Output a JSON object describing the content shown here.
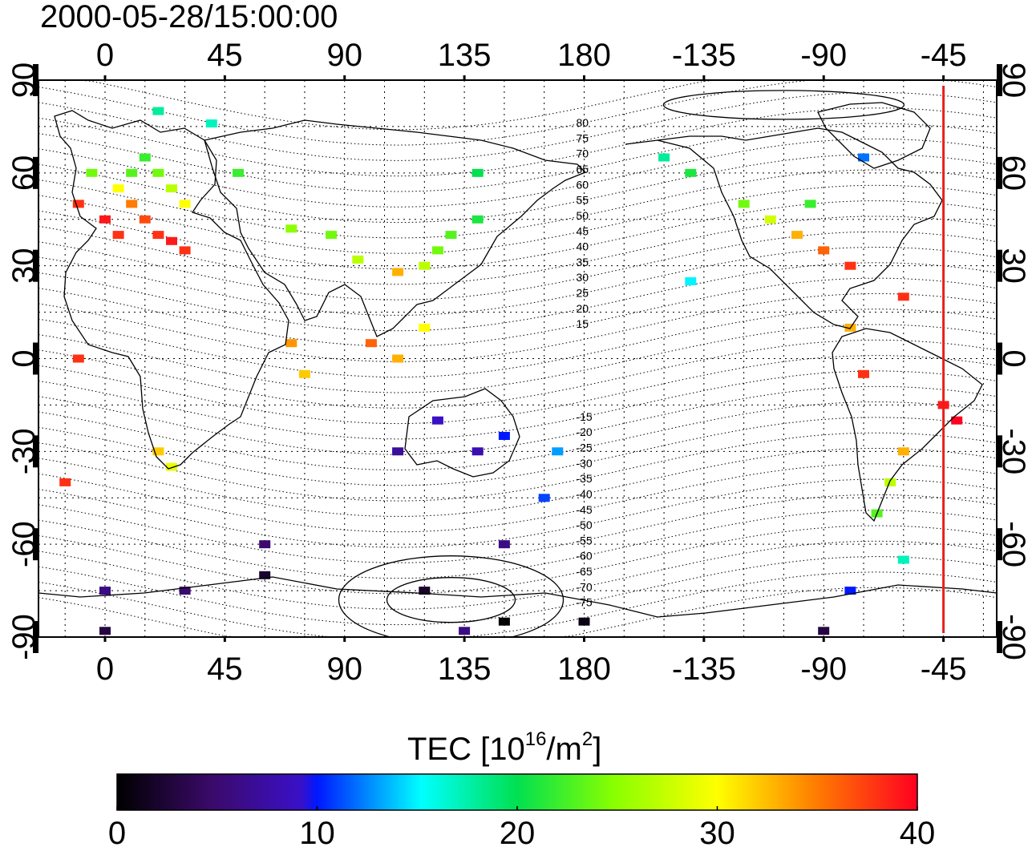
{
  "title": "2000-05-28/15:00:00",
  "lon_ticks": [
    "0",
    "45",
    "90",
    "135",
    "180",
    "-135",
    "-90",
    "-45"
  ],
  "lat_ticks": [
    "90",
    "60",
    "30",
    "0",
    "-30",
    "-60",
    "-90"
  ],
  "mag_lat_labels": [
    "80",
    "75",
    "70",
    "65",
    "60",
    "55",
    "50",
    "45",
    "40",
    "35",
    "30",
    "25",
    "20",
    "15",
    "-15",
    "-20",
    "-25",
    "-30",
    "-35",
    "-40",
    "-45",
    "-50",
    "-55",
    "-60",
    "-65",
    "-70",
    "-75"
  ],
  "colorbar": {
    "label_main": "TEC  [10",
    "label_exp1": "16",
    "label_mid": "/m",
    "label_exp2": "2",
    "label_end": "]",
    "ticks": [
      "0",
      "10",
      "20",
      "30",
      "40"
    ],
    "min": 0,
    "max": 40
  },
  "terminator_longitude": -45,
  "colors": {
    "terminator": "#e8201a",
    "frame": "#000000",
    "grid": "#000000"
  },
  "chart_data": {
    "type": "heatmap",
    "title": "2000-05-28/15:00:00",
    "x_range": [
      -25,
      335
    ],
    "y_range": [
      -90,
      90
    ],
    "value_range": [
      0,
      40
    ],
    "cells": [
      {
        "lon": -10,
        "lat": 50,
        "tec": 38
      },
      {
        "lon": 0,
        "lat": 45,
        "tec": 39
      },
      {
        "lon": 5,
        "lat": 40,
        "tec": 38
      },
      {
        "lon": 10,
        "lat": 50,
        "tec": 35
      },
      {
        "lon": 15,
        "lat": 45,
        "tec": 37
      },
      {
        "lon": 20,
        "lat": 40,
        "tec": 38
      },
      {
        "lon": 25,
        "lat": 38,
        "tec": 39
      },
      {
        "lon": 30,
        "lat": 35,
        "tec": 38
      },
      {
        "lon": 5,
        "lat": 55,
        "tec": 30
      },
      {
        "lon": 10,
        "lat": 60,
        "tec": 23
      },
      {
        "lon": 15,
        "lat": 65,
        "tec": 22
      },
      {
        "lon": 20,
        "lat": 60,
        "tec": 24
      },
      {
        "lon": 25,
        "lat": 55,
        "tec": 27
      },
      {
        "lon": 30,
        "lat": 50,
        "tec": 30
      },
      {
        "lon": -5,
        "lat": 60,
        "tec": 24
      },
      {
        "lon": 20,
        "lat": 80,
        "tec": 18
      },
      {
        "lon": 40,
        "lat": 76,
        "tec": 17
      },
      {
        "lon": 50,
        "lat": 60,
        "tec": 22
      },
      {
        "lon": 70,
        "lat": 42,
        "tec": 25
      },
      {
        "lon": 85,
        "lat": 40,
        "tec": 24
      },
      {
        "lon": 95,
        "lat": 32,
        "tec": 27
      },
      {
        "lon": 110,
        "lat": 28,
        "tec": 33
      },
      {
        "lon": 120,
        "lat": 30,
        "tec": 27
      },
      {
        "lon": 130,
        "lat": 40,
        "tec": 23
      },
      {
        "lon": 125,
        "lat": 35,
        "tec": 24
      },
      {
        "lon": 140,
        "lat": 45,
        "tec": 21
      },
      {
        "lon": 140,
        "lat": 60,
        "tec": 20
      },
      {
        "lon": 100,
        "lat": 5,
        "tec": 36
      },
      {
        "lon": 110,
        "lat": 0,
        "tec": 33
      },
      {
        "lon": 120,
        "lat": 10,
        "tec": 30
      },
      {
        "lon": 70,
        "lat": 5,
        "tec": 34
      },
      {
        "lon": 75,
        "lat": -5,
        "tec": 32
      },
      {
        "lon": 20,
        "lat": -30,
        "tec": 32
      },
      {
        "lon": 25,
        "lat": -35,
        "tec": 29
      },
      {
        "lon": -15,
        "lat": -40,
        "tec": 38
      },
      {
        "lon": -10,
        "lat": 0,
        "tec": 38
      },
      {
        "lon": 125,
        "lat": -20,
        "tec": 9
      },
      {
        "lon": 140,
        "lat": -30,
        "tec": 8
      },
      {
        "lon": 150,
        "lat": -25,
        "tec": 10
      },
      {
        "lon": 165,
        "lat": -45,
        "tec": 11
      },
      {
        "lon": 170,
        "lat": -30,
        "tec": 13
      },
      {
        "lon": 110,
        "lat": -30,
        "tec": 7
      },
      {
        "lon": -100,
        "lat": 40,
        "tec": 33
      },
      {
        "lon": -90,
        "lat": 35,
        "tec": 36
      },
      {
        "lon": -80,
        "lat": 30,
        "tec": 38
      },
      {
        "lon": -110,
        "lat": 45,
        "tec": 28
      },
      {
        "lon": -95,
        "lat": 50,
        "tec": 22
      },
      {
        "lon": -120,
        "lat": 50,
        "tec": 24
      },
      {
        "lon": -140,
        "lat": 60,
        "tec": 21
      },
      {
        "lon": -150,
        "lat": 65,
        "tec": 18
      },
      {
        "lon": -75,
        "lat": 65,
        "tec": 12
      },
      {
        "lon": -140,
        "lat": 25,
        "tec": 15
      },
      {
        "lon": -60,
        "lat": 20,
        "tec": 38
      },
      {
        "lon": -80,
        "lat": 10,
        "tec": 33
      },
      {
        "lon": -75,
        "lat": -5,
        "tec": 38
      },
      {
        "lon": -45,
        "lat": -15,
        "tec": 39
      },
      {
        "lon": -40,
        "lat": -20,
        "tec": 40
      },
      {
        "lon": -60,
        "lat": -30,
        "tec": 33
      },
      {
        "lon": -65,
        "lat": -40,
        "tec": 27
      },
      {
        "lon": -70,
        "lat": -50,
        "tec": 23
      },
      {
        "lon": -60,
        "lat": -65,
        "tec": 17
      },
      {
        "lon": -80,
        "lat": -75,
        "tec": 10
      },
      {
        "lon": 0,
        "lat": -75,
        "tec": 6
      },
      {
        "lon": 30,
        "lat": -75,
        "tec": 5
      },
      {
        "lon": 60,
        "lat": -70,
        "tec": 2
      },
      {
        "lon": 120,
        "lat": -75,
        "tec": 2
      },
      {
        "lon": 150,
        "lat": -85,
        "tec": 0
      },
      {
        "lon": 180,
        "lat": -85,
        "tec": 1
      },
      {
        "lon": 60,
        "lat": -60,
        "tec": 5
      },
      {
        "lon": 150,
        "lat": -60,
        "tec": 6
      },
      {
        "lon": 0,
        "lat": -88,
        "tec": 3
      },
      {
        "lon": 135,
        "lat": -88,
        "tec": 6
      },
      {
        "lon": -90,
        "lat": -88,
        "tec": 3
      }
    ]
  }
}
